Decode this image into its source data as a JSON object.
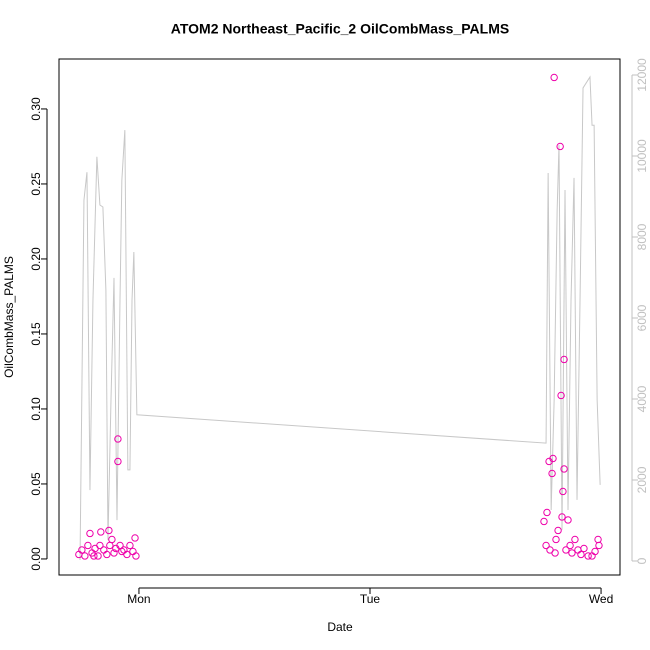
{
  "chart_data": {
    "type": "scatter",
    "title": "ATOM2 Northeast_Pacific_2 OilCombMass_PALMS",
    "xlabel": "Date",
    "ylabel": "OilCombMass_PALMS",
    "xlim": [
      -0.346,
      2.082
    ],
    "xticks": [
      {
        "value": 0,
        "label": "Mon"
      },
      {
        "value": 1,
        "label": "Tue"
      },
      {
        "value": 2,
        "label": "Wed"
      }
    ],
    "ylim": [
      -0.0107,
      0.3333
    ],
    "yticks": [
      {
        "value": 0,
        "label": "0.00"
      },
      {
        "value": 0.05,
        "label": "0.05"
      },
      {
        "value": 0.1,
        "label": "0.10"
      },
      {
        "value": 0.15,
        "label": "0.15"
      },
      {
        "value": 0.2,
        "label": "0.20"
      },
      {
        "value": 0.25,
        "label": "0.25"
      },
      {
        "value": 0.3,
        "label": "0.30"
      }
    ],
    "y2lim": [
      -346,
      12395
    ],
    "y2ticks": [
      0,
      2000,
      4000,
      6000,
      8000,
      10000,
      12000
    ],
    "y2color": "#c0c0c0",
    "series": [
      {
        "type": "scatter",
        "color": "#ee00aa",
        "x": [
          -0.26,
          -0.247,
          -0.234,
          -0.221,
          -0.212,
          -0.203,
          -0.19,
          -0.177,
          -0.165,
          -0.152,
          -0.139,
          -0.13,
          -0.126,
          -0.117,
          -0.108,
          -0.1,
          -0.091,
          -0.091,
          -0.082,
          -0.074,
          -0.065,
          -0.052,
          -0.039,
          -0.026,
          -0.017,
          -0.013,
          -0.195,
          -0.169,
          1.753,
          1.766,
          1.775,
          1.779,
          1.788,
          1.792,
          1.797,
          1.805,
          1.814,
          1.823,
          1.827,
          1.831,
          1.835,
          1.84,
          1.84,
          1.848,
          1.857,
          1.866,
          1.874,
          1.887,
          1.9,
          1.913,
          1.926,
          1.944,
          1.961,
          1.974,
          1.987,
          1.991,
          1.762,
          1.801
        ],
        "values": [
          0.003,
          0.006,
          0.002,
          0.009,
          0.017,
          0.004,
          0.007,
          0.002,
          0.018,
          0.006,
          0.003,
          0.019,
          0.009,
          0.013,
          0.004,
          0.007,
          0.08,
          0.065,
          0.009,
          0.005,
          0.006,
          0.003,
          0.009,
          0.005,
          0.014,
          0.002,
          0.002,
          0.009,
          0.025,
          0.031,
          0.065,
          0.006,
          0.057,
          0.067,
          0.321,
          0.013,
          0.019,
          0.275,
          0.109,
          0.028,
          0.045,
          0.133,
          0.06,
          0.006,
          0.026,
          0.009,
          0.004,
          0.013,
          0.006,
          0.003,
          0.007,
          0.002,
          0.002,
          0.005,
          0.013,
          0.009,
          0.009,
          0.004
        ]
      },
      {
        "type": "line",
        "axis": "y2",
        "color": "#c8c8c8",
        "x": [
          -0.255,
          -0.238,
          -0.225,
          -0.212,
          -0.199,
          -0.182,
          -0.169,
          -0.156,
          -0.143,
          -0.134,
          -0.121,
          -0.108,
          -0.095,
          -0.082,
          -0.074,
          -0.061,
          -0.048,
          -0.039,
          -0.03,
          -0.022,
          -0.009,
          1.762,
          1.771,
          1.784,
          1.797,
          1.81,
          1.818,
          1.831,
          1.844,
          1.857,
          1.87,
          1.883,
          1.896,
          1.909,
          1.922,
          1.952,
          1.961,
          1.97,
          1.983,
          1.996
        ],
        "values": [
          25,
          8910,
          9600,
          1750,
          6450,
          9980,
          8790,
          8740,
          6690,
          520,
          3980,
          6990,
          1010,
          6440,
          9400,
          10640,
          2250,
          2250,
          6440,
          7630,
          3610,
          2910,
          9580,
          1260,
          3980,
          8670,
          10270,
          770,
          9160,
          1260,
          6440,
          9460,
          1510,
          6440,
          11680,
          11950,
          10760,
          10760,
          3980,
          1880
        ]
      }
    ]
  }
}
